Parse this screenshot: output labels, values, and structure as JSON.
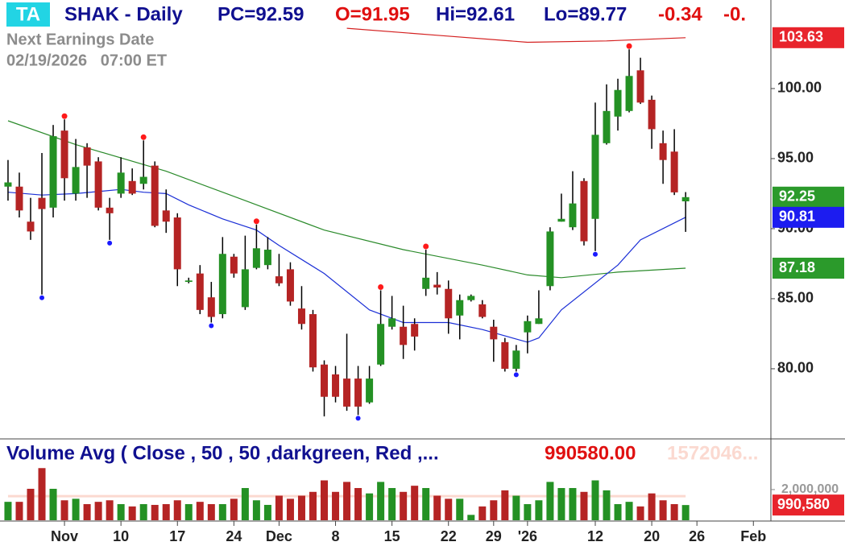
{
  "chart_data": {
    "type": "candlestick",
    "header": {
      "badge": "TA",
      "symbol": "SHAK - Daily",
      "pc": "PC=92.59",
      "open": "O=91.95",
      "high": "Hi=92.61",
      "low": "Lo=89.77",
      "change": "-0.34",
      "change_pct": "-0."
    },
    "earnings_label": "Next Earnings Date",
    "earnings_date": "02/19/2026   07:00 ET",
    "x": [
      0,
      1,
      2,
      3,
      4,
      5,
      6,
      7,
      8,
      9,
      10,
      11,
      12,
      13,
      14,
      15,
      16,
      17,
      18,
      19,
      20,
      21,
      22,
      23,
      24,
      25,
      26,
      27,
      28,
      29,
      30,
      31,
      32,
      33,
      34,
      35,
      36,
      37,
      38,
      39,
      40,
      41,
      42,
      43,
      44,
      45,
      46,
      47,
      48,
      49,
      50,
      51,
      52,
      53,
      54,
      55,
      56,
      57,
      58,
      59,
      60
    ],
    "open": [
      93.0,
      93.0,
      90.5,
      92.2,
      91.5,
      97.0,
      92.5,
      95.8,
      94.8,
      91.5,
      92.5,
      93.4,
      93.2,
      94.5,
      91.3,
      90.8,
      86.2,
      86.8,
      85.1,
      83.9,
      88.0,
      84.4,
      87.2,
      87.4,
      86.6,
      87.1,
      84.3,
      83.9,
      80.3,
      79.6,
      79.3,
      79.3,
      77.6,
      80.3,
      83.0,
      83.0,
      83.2,
      85.7,
      86.0,
      85.7,
      83.8,
      84.9,
      84.6,
      83.0,
      81.9,
      80.0,
      82.6,
      83.2,
      85.9,
      90.5,
      90.1,
      93.4,
      90.7,
      96.1,
      98.0,
      98.4,
      101.3,
      99.2,
      96.1,
      95.5,
      91.95
    ],
    "high": [
      94.9,
      94.0,
      92.2,
      95.4,
      97.4,
      97.8,
      96.4,
      96.1,
      95.1,
      92.2,
      95.1,
      94.3,
      96.3,
      94.8,
      92.8,
      91.1,
      86.5,
      87.4,
      86.2,
      89.4,
      88.2,
      89.5,
      90.3,
      89.4,
      88.2,
      87.6,
      85.9,
      84.2,
      80.6,
      80.2,
      82.5,
      80.2,
      80.2,
      85.6,
      85.2,
      84.5,
      83.6,
      88.5,
      86.9,
      86.3,
      85.3,
      85.3,
      84.9,
      83.5,
      82.2,
      81.7,
      83.8,
      85.6,
      90.1,
      92.5,
      94.1,
      93.6,
      99.0,
      100.3,
      100.7,
      102.8,
      102.2,
      99.5,
      97.0,
      97.1,
      92.61
    ],
    "low": [
      92.0,
      90.8,
      89.2,
      85.3,
      90.8,
      92.0,
      92.0,
      92.2,
      91.3,
      89.2,
      92.2,
      92.4,
      92.8,
      90.1,
      89.7,
      85.9,
      86.1,
      83.9,
      83.3,
      83.6,
      86.5,
      84.2,
      87.1,
      87.1,
      85.9,
      84.5,
      82.8,
      79.8,
      76.6,
      77.6,
      77.0,
      76.7,
      77.5,
      80.2,
      82.8,
      80.7,
      81.3,
      85.2,
      85.3,
      82.5,
      82.1,
      84.8,
      83.6,
      80.5,
      79.8,
      79.8,
      81.1,
      83.2,
      85.6,
      90.5,
      89.9,
      88.8,
      88.4,
      96.0,
      97.0,
      98.3,
      98.9,
      95.7,
      93.2,
      92.4,
      89.77
    ],
    "close": [
      93.3,
      91.3,
      89.8,
      91.4,
      96.6,
      93.6,
      94.4,
      94.5,
      91.5,
      91.1,
      94.0,
      92.5,
      93.7,
      90.2,
      90.5,
      87.1,
      86.3,
      84.2,
      83.7,
      88.2,
      86.8,
      87.1,
      88.6,
      88.5,
      86.1,
      84.8,
      83.2,
      80.1,
      78.0,
      78.0,
      77.3,
      77.3,
      79.3,
      83.2,
      83.6,
      81.7,
      82.3,
      86.5,
      85.8,
      83.6,
      84.9,
      85.2,
      83.7,
      82.1,
      80.0,
      81.3,
      83.4,
      83.6,
      89.8,
      90.7,
      91.8,
      89.1,
      96.7,
      98.4,
      99.9,
      100.9,
      99.0,
      97.1,
      94.9,
      92.59,
      92.25
    ],
    "up_color": "#249124",
    "down_color": "#b52424",
    "xlim": [
      -0.71,
      67.55
    ],
    "xticks": [
      {
        "value": 5,
        "label": "Nov"
      },
      {
        "value": 10,
        "label": "10"
      },
      {
        "value": 15,
        "label": "17"
      },
      {
        "value": 20,
        "label": "24"
      },
      {
        "value": 24,
        "label": "Dec"
      },
      {
        "value": 29,
        "label": "8"
      },
      {
        "value": 34,
        "label": "15"
      },
      {
        "value": 39,
        "label": "22"
      },
      {
        "value": 43,
        "label": "29"
      },
      {
        "value": 46,
        "label": "'26"
      },
      {
        "value": 52,
        "label": "12"
      },
      {
        "value": 57,
        "label": "20"
      },
      {
        "value": 61,
        "label": "26"
      },
      {
        "value": 66,
        "label": "Feb"
      }
    ],
    "ylim": [
      75.11,
      106.32
    ],
    "yticks": [
      {
        "value": 80,
        "label": "80.00"
      },
      {
        "value": 85,
        "label": "85.00"
      },
      {
        "value": 90,
        "label": "90.00"
      },
      {
        "value": 95,
        "label": "95.00"
      },
      {
        "value": 100,
        "label": "100.00"
      }
    ],
    "overlays": [
      {
        "color": "#2a8a2a",
        "x": [
          0,
          6,
          14,
          21,
          28,
          35,
          42,
          46,
          49,
          54,
          60
        ],
        "values": [
          97.7,
          96.0,
          94.1,
          92.0,
          89.9,
          88.5,
          87.4,
          86.7,
          86.5,
          86.9,
          87.18
        ]
      },
      {
        "color": "#1b2fd6",
        "x": [
          0,
          3,
          6,
          10,
          12,
          14,
          16,
          19,
          22,
          24,
          28,
          32,
          35,
          39,
          42,
          46,
          47,
          49,
          54,
          56,
          60
        ],
        "values": [
          92.6,
          92.4,
          92.5,
          92.8,
          92.6,
          92.5,
          91.7,
          90.7,
          89.9,
          88.8,
          86.8,
          84.2,
          83.3,
          83.3,
          82.8,
          81.9,
          82.2,
          84.2,
          87.4,
          89.2,
          90.81
        ]
      },
      {
        "color": "#d42020",
        "x": [
          30,
          38,
          46,
          53,
          60
        ],
        "values": [
          104.3,
          103.8,
          103.3,
          103.4,
          103.63
        ]
      }
    ],
    "pivot_high_color": "#ff1a1a",
    "pivot_highs": [
      5,
      12,
      22,
      33,
      37,
      55
    ],
    "pivot_low_color": "#1a1aff",
    "pivot_lows": [
      3,
      9,
      18,
      31,
      45,
      52
    ],
    "price_labels": [
      {
        "value": 103.63,
        "color": "#e8242c"
      },
      {
        "value": 92.25,
        "color": "#2b9a2b"
      },
      {
        "value": 90.81,
        "color": "#1c1cf0"
      },
      {
        "value": 87.18,
        "color": "#2b9a2b"
      }
    ],
    "volume": {
      "title": "Volume Avg ( Close , 50 , 50 ,darkgreen, Red ,...",
      "value_text": "990580.00",
      "avg_text": "1572046...",
      "values": [
        1200000,
        1200000,
        2050000,
        3400000,
        2050000,
        1300000,
        1400000,
        1050000,
        1200000,
        1300000,
        1050000,
        900000,
        1050000,
        1000000,
        1050000,
        1300000,
        1050000,
        1200000,
        1050000,
        1050000,
        1400000,
        2100000,
        1300000,
        1000000,
        1600000,
        1400000,
        1600000,
        1850000,
        2600000,
        1850000,
        2500000,
        2100000,
        1750000,
        2500000,
        2100000,
        1850000,
        2250000,
        2100000,
        1600000,
        1400000,
        1400000,
        350000,
        900000,
        1300000,
        1950000,
        1600000,
        1050000,
        1300000,
        2500000,
        2100000,
        2100000,
        1850000,
        2600000,
        1950000,
        1050000,
        1200000,
        900000,
        1750000,
        1300000,
        1050000,
        990580
      ],
      "avg": 1572046,
      "avg_color": "#fbd9d0",
      "ylim": [
        0,
        5200000
      ],
      "yticks": [
        {
          "value": 2000000,
          "label": "2,000,000"
        }
      ],
      "last_label": {
        "value": 990580,
        "label": "990,580",
        "color": "#e8242c"
      }
    }
  }
}
